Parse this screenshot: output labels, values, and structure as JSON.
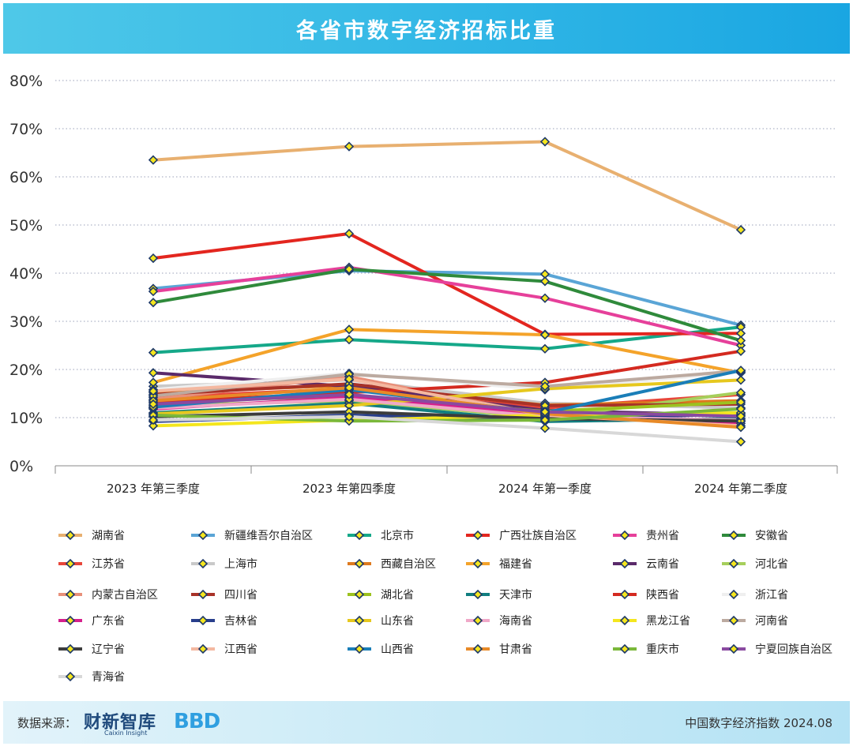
{
  "header": {
    "title": "各省市数字经济招标比重"
  },
  "footer": {
    "source_label": "数据来源：",
    "logo_text": "财新智库",
    "logo_sub": "Caixin Insight",
    "logo2": "BBD",
    "right_text": "中国数字经济指数 2024.08"
  },
  "chart_data": {
    "type": "line",
    "title": "各省市数字经济招标比重",
    "categories": [
      "2023 年第三季度",
      "2023 年第四季度",
      "2024 年第一季度",
      "2024 年第二季度"
    ],
    "ylim": [
      0,
      80
    ],
    "yticks": [
      0,
      10,
      20,
      30,
      40,
      50,
      60,
      70,
      80
    ],
    "ytick_labels": [
      "0%",
      "10%",
      "20%",
      "30%",
      "40%",
      "50%",
      "60%",
      "70%",
      "80%"
    ],
    "grid": true,
    "legend_position": "bottom",
    "series": [
      {
        "name": "湖南省",
        "color": "#e8b070",
        "values": [
          63.5,
          66.3,
          67.3,
          49.0
        ]
      },
      {
        "name": "新疆维吾尔自治区",
        "color": "#5aa5d6",
        "values": [
          36.8,
          40.5,
          39.8,
          29.2
        ]
      },
      {
        "name": "北京市",
        "color": "#15a889",
        "values": [
          23.5,
          26.2,
          24.3,
          28.8
        ]
      },
      {
        "name": "广西壮族自治区",
        "color": "#e3261f",
        "values": [
          43.1,
          48.2,
          27.3,
          27.5
        ]
      },
      {
        "name": "贵州省",
        "color": "#e6409a",
        "values": [
          36.2,
          41.2,
          34.8,
          25.0
        ]
      },
      {
        "name": "安徽省",
        "color": "#2f8a3b",
        "values": [
          33.9,
          40.8,
          38.3,
          26.0
        ]
      },
      {
        "name": "江苏省",
        "color": "#e8463a",
        "values": [
          14.2,
          16.0,
          12.0,
          14.8
        ]
      },
      {
        "name": "上海市",
        "color": "#c9c9c9",
        "values": [
          16.5,
          17.8,
          13.0,
          12.0
        ]
      },
      {
        "name": "西藏自治区",
        "color": "#de7a1f",
        "values": [
          15.2,
          16.7,
          12.6,
          13.5
        ]
      },
      {
        "name": "福建省",
        "color": "#f4a32a",
        "values": [
          17.3,
          28.3,
          27.2,
          19.3
        ]
      },
      {
        "name": "云南省",
        "color": "#5a2a6a",
        "values": [
          19.3,
          16.5,
          11.5,
          10.5
        ]
      },
      {
        "name": "河北省",
        "color": "#a6cf5b",
        "values": [
          12.5,
          13.5,
          10.0,
          15.2
        ]
      },
      {
        "name": "内蒙古自治区",
        "color": "#e8907a",
        "values": [
          13.8,
          18.5,
          10.5,
          9.2
        ]
      },
      {
        "name": "四川省",
        "color": "#a83228",
        "values": [
          14.8,
          17.0,
          12.5,
          12.8
        ]
      },
      {
        "name": "湖北省",
        "color": "#9cc21f",
        "values": [
          13.2,
          14.5,
          11.3,
          13.2
        ]
      },
      {
        "name": "天津市",
        "color": "#117e80",
        "values": [
          11.0,
          13.0,
          9.2,
          9.8
        ]
      },
      {
        "name": "陕西省",
        "color": "#d42a20",
        "values": [
          13.2,
          15.2,
          17.3,
          23.8
        ]
      },
      {
        "name": "浙江省",
        "color": "#efefef",
        "values": [
          15.8,
          19.2,
          15.8,
          19.5
        ]
      },
      {
        "name": "广东省",
        "color": "#d61f8c",
        "values": [
          11.8,
          14.2,
          10.8,
          8.8
        ]
      },
      {
        "name": "吉林省",
        "color": "#283e8c",
        "values": [
          9.2,
          10.5,
          9.5,
          10.8
        ]
      },
      {
        "name": "山东省",
        "color": "#e6c81e",
        "values": [
          10.8,
          12.5,
          16.0,
          17.8
        ]
      },
      {
        "name": "海南省",
        "color": "#f0a8c8",
        "values": [
          12.0,
          13.8,
          10.2,
          9.5
        ]
      },
      {
        "name": "黑龙江省",
        "color": "#f4e61e",
        "values": [
          8.3,
          9.5,
          10.5,
          11.0
        ]
      },
      {
        "name": "河南省",
        "color": "#bcaaa0",
        "values": [
          14.5,
          19.0,
          16.5,
          19.7
        ]
      },
      {
        "name": "辽宁省",
        "color": "#3c3c3c",
        "values": [
          10.2,
          11.2,
          9.8,
          9.3
        ]
      },
      {
        "name": "江西省",
        "color": "#f4b8a0",
        "values": [
          15.5,
          18.0,
          10.5,
          8.3
        ]
      },
      {
        "name": "山西省",
        "color": "#1a7eb8",
        "values": [
          12.2,
          15.8,
          11.0,
          19.8
        ]
      },
      {
        "name": "甘肃省",
        "color": "#e88a28",
        "values": [
          13.5,
          16.2,
          10.8,
          8.0
        ]
      },
      {
        "name": "重庆市",
        "color": "#7ab83a",
        "values": [
          10.5,
          9.3,
          9.5,
          11.8
        ]
      },
      {
        "name": "宁夏回族自治区",
        "color": "#8a4aa0",
        "values": [
          12.8,
          14.8,
          11.2,
          10.3
        ]
      },
      {
        "name": "青海省",
        "color": "#d8d8d8",
        "values": [
          9.5,
          10.2,
          7.8,
          5.0
        ]
      }
    ]
  }
}
